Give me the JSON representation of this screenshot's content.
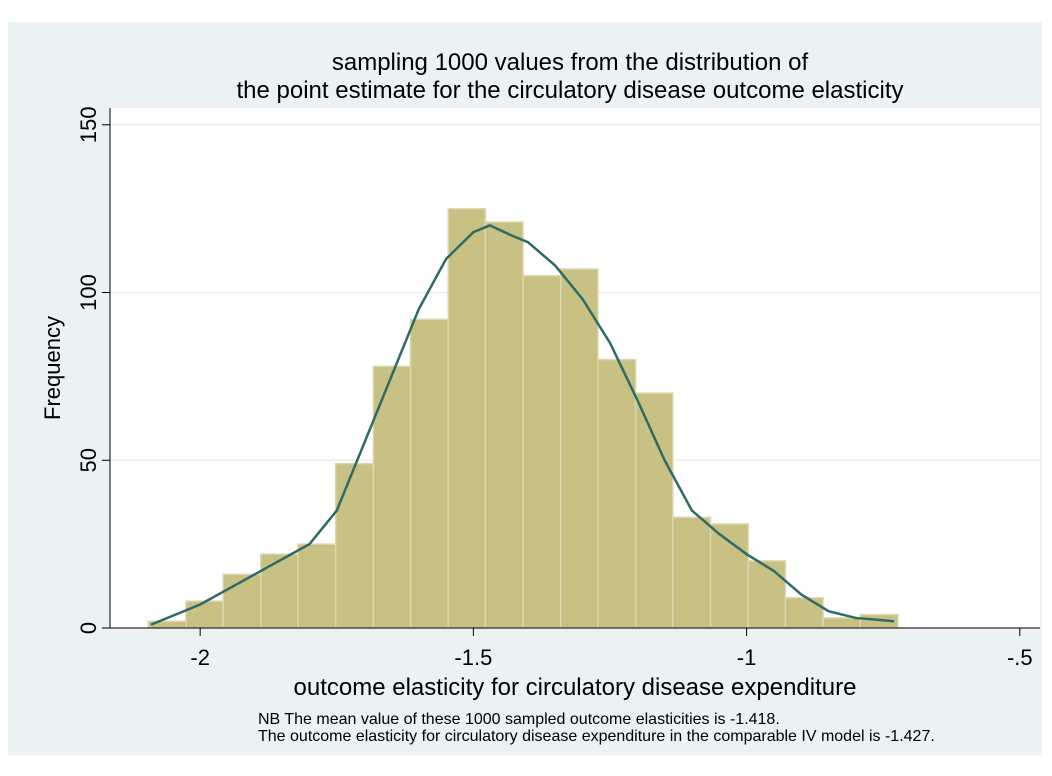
{
  "chart_data": {
    "type": "histogram",
    "title": [
      "sampling 1000 values from the distribution of",
      "the point estimate for the circulatory disease outcome elasticity"
    ],
    "x_label": "outcome elasticity for circulatory disease expenditure",
    "y_label": "Frequency",
    "notes": [
      "NB The mean value of these 1000 sampled outcome elasticities is -1.418.",
      "The outcome elasticity for circulatory disease expenditure in the comparable IV model is -1.427."
    ],
    "bins": [
      -2.095,
      -2.026,
      -1.958,
      -1.889,
      -1.821,
      -1.752,
      -1.683,
      -1.615,
      -1.546,
      -1.478,
      -1.409,
      -1.34,
      -1.272,
      -1.203,
      -1.135,
      -1.066,
      -0.997,
      -0.929,
      -0.86,
      -0.792,
      -0.723
    ],
    "counts": [
      2,
      8,
      16,
      22,
      25,
      49,
      78,
      92,
      125,
      121,
      105,
      107,
      80,
      70,
      33,
      31,
      20,
      9,
      3,
      4
    ],
    "color": "#c9c084",
    "line": {
      "color": "#2e6b68",
      "x": [
        -2.09,
        -2.0,
        -1.9,
        -1.8,
        -1.75,
        -1.7,
        -1.65,
        -1.6,
        -1.55,
        -1.5,
        -1.47,
        -1.43,
        -1.4,
        -1.35,
        -1.3,
        -1.25,
        -1.2,
        -1.15,
        -1.1,
        -1.05,
        -1.0,
        -0.95,
        -0.9,
        -0.85,
        -0.8,
        -0.73
      ],
      "values": [
        1,
        7,
        16,
        25,
        35,
        55,
        75,
        95,
        110,
        118,
        120,
        117,
        115,
        108,
        98,
        85,
        68,
        50,
        35,
        28,
        22,
        17,
        10,
        5,
        3,
        2
      ]
    },
    "xlim": [
      -2.165,
      -0.463
    ],
    "ylim": [
      0,
      155
    ],
    "xticks": [
      -2,
      -1.5,
      -1,
      {
        "value": -0.5,
        "label": "-.5"
      }
    ],
    "yticks": [
      0,
      50,
      100,
      150
    ],
    "grid": true
  }
}
